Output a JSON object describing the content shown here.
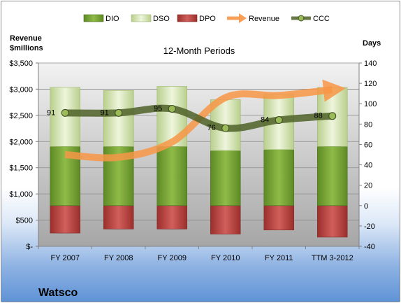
{
  "company": "Watsco",
  "chart_data": {
    "type": "bar",
    "title": "12-Month Periods",
    "y_left_label_line1": "Revenue",
    "y_left_label_line2": "$millions",
    "y_right_label": "Days",
    "ylim_left": [
      0,
      3500
    ],
    "ylim_right": [
      -40,
      140
    ],
    "yticks_left": [
      "$3,500",
      "$3,000",
      "$2,500",
      "$2,000",
      "$1,500",
      "$1,000",
      "$500",
      "$-"
    ],
    "yticks_right": [
      "140",
      "120",
      "100",
      "80",
      "60",
      "40",
      "20",
      "0",
      "-20",
      "-40"
    ],
    "categories": [
      "FY 2007",
      "FY 2008",
      "FY 2009",
      "FY 2010",
      "FY 2011",
      "TTM 3-2012"
    ],
    "series": [
      {
        "name": "DIO",
        "type": "bar",
        "axis": "right",
        "color": "#77a033",
        "values": [
          58,
          58,
          58,
          54,
          55,
          58
        ]
      },
      {
        "name": "DSO",
        "type": "bar",
        "axis": "right",
        "color": "#d7e4bd",
        "values": [
          58,
          55,
          59,
          50,
          54,
          58
        ]
      },
      {
        "name": "DPO",
        "type": "bar",
        "axis": "right",
        "color": "#c0504d",
        "values": [
          -27,
          -23,
          -23,
          -28,
          -24,
          -31
        ]
      },
      {
        "name": "Revenue",
        "type": "line",
        "axis": "left",
        "color": "#f79646",
        "values": [
          1750,
          1700,
          1990,
          2840,
          2880,
          2990
        ]
      },
      {
        "name": "CCC",
        "type": "line",
        "axis": "right",
        "color": "#4f6228",
        "values": [
          91,
          91,
          95,
          76,
          84,
          88
        ]
      }
    ],
    "ccc_labels": [
      "91",
      "91",
      "95",
      "76",
      "84",
      "88"
    ],
    "legend_position": "top"
  }
}
